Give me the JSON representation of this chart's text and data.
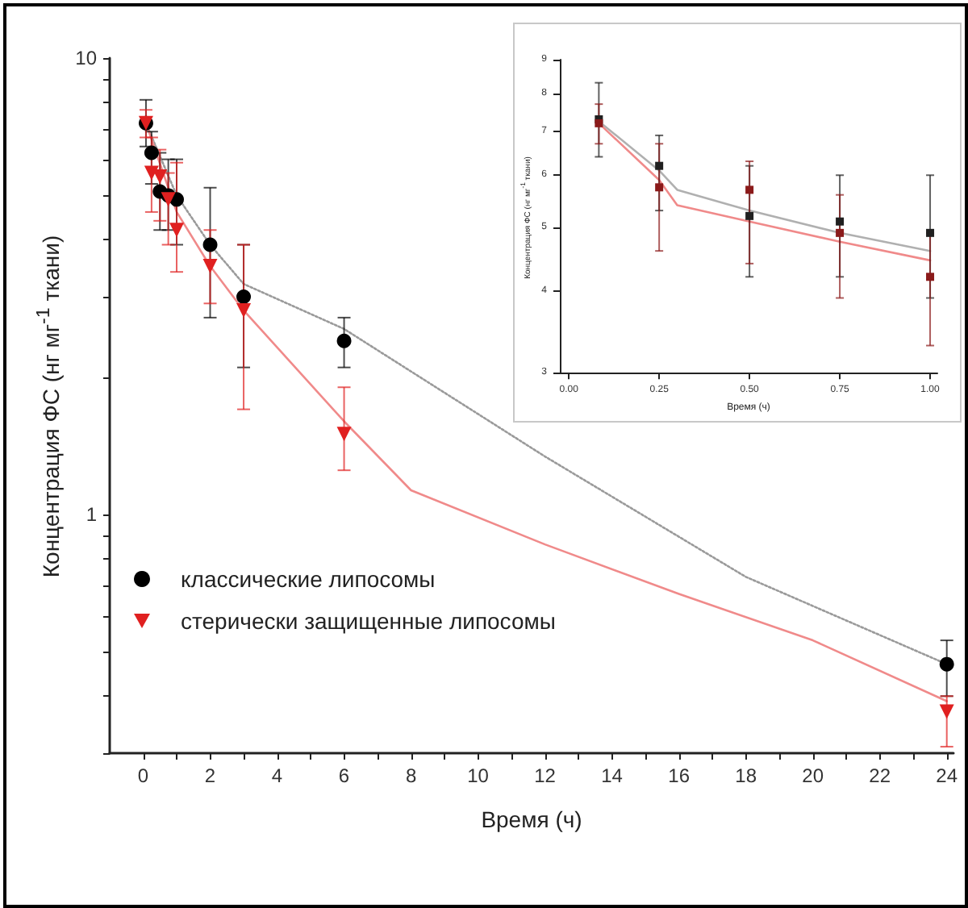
{
  "chart_data": [
    {
      "type": "scatter",
      "xlabel": "Время (ч)",
      "ylabel": "Концентрация ФС (нг мг$^{-1}$ ткани)",
      "log": "y",
      "grid": false,
      "legend": "bottom left",
      "xlim": [
        -1,
        24.2
      ],
      "xticks": [
        0,
        {
          "value": 1,
          "label": null
        },
        2,
        {
          "value": 3,
          "label": null
        },
        4,
        {
          "value": 5,
          "label": null
        },
        6,
        {
          "value": 7,
          "label": null
        },
        8,
        {
          "value": 9,
          "label": null
        },
        10,
        {
          "value": 11,
          "label": null
        },
        12,
        {
          "value": 13,
          "label": null
        },
        14,
        {
          "value": 15,
          "label": null
        },
        16,
        {
          "value": 17,
          "label": null
        },
        18,
        {
          "value": 19,
          "label": null
        },
        20,
        {
          "value": 21,
          "label": null
        },
        22,
        {
          "value": 23,
          "label": null
        },
        24
      ],
      "ylim": [
        0.3,
        10
      ],
      "yticks": [
        {
          "value": 0.3,
          "label": null
        },
        {
          "value": 0.4,
          "label": null
        },
        {
          "value": 0.5,
          "label": null
        },
        {
          "value": 0.6,
          "label": null
        },
        {
          "value": 0.7,
          "label": null
        },
        {
          "value": 0.8,
          "label": null
        },
        {
          "value": 0.9,
          "label": null
        },
        1,
        {
          "value": 2,
          "label": null
        },
        {
          "value": 3,
          "label": null
        },
        {
          "value": 4,
          "label": null
        },
        {
          "value": 5,
          "label": null
        },
        {
          "value": 6,
          "label": null
        },
        {
          "value": 7,
          "label": null
        },
        {
          "value": 8,
          "label": null
        },
        {
          "value": 9,
          "label": null
        },
        10
      ],
      "series": [
        {
          "type": "line",
          "line_style": "dotted",
          "marker": "none",
          "color": "#9a9a9a",
          "x": [
            0.083,
            1,
            2,
            3,
            6,
            12,
            18,
            24
          ],
          "values": [
            7.2,
            5.0,
            3.9,
            3.2,
            2.55,
            1.34,
            0.73,
            0.47
          ]
        },
        {
          "type": "line",
          "line_style": "solid",
          "marker": "none",
          "color": "#f08a8a",
          "x": [
            0.083,
            1,
            2,
            3,
            6,
            8,
            12,
            16,
            20,
            24
          ],
          "values": [
            7.2,
            4.6,
            3.5,
            2.8,
            1.6,
            1.13,
            0.86,
            0.67,
            0.53,
            0.39
          ]
        },
        {
          "name": "классические липосомы",
          "type": "scatter",
          "marker": "circle",
          "color": "#000000",
          "x": [
            0.083,
            0.25,
            0.5,
            0.75,
            1,
            2,
            3,
            6,
            24
          ],
          "values": [
            7.2,
            6.2,
            5.1,
            5.0,
            4.9,
            3.9,
            3.0,
            2.4,
            0.47
          ],
          "errors": [
            [
              6.4,
              8.1
            ],
            [
              5.3,
              6.9
            ],
            [
              4.2,
              6.2
            ],
            [
              4.2,
              6.0
            ],
            [
              3.9,
              6.0
            ],
            [
              2.7,
              5.2
            ],
            [
              2.1,
              3.9
            ],
            [
              2.1,
              2.7
            ],
            [
              0.4,
              0.53
            ]
          ]
        },
        {
          "name": "стерически защищенные липосомы",
          "type": "scatter",
          "marker": "triangle",
          "color": "#e02020",
          "x": [
            0.083,
            0.25,
            0.5,
            0.75,
            1,
            2,
            3,
            6,
            24
          ],
          "values": [
            7.2,
            5.6,
            5.5,
            4.9,
            4.2,
            3.5,
            2.8,
            1.5,
            0.37
          ],
          "errors": [
            [
              6.7,
              7.7
            ],
            [
              4.6,
              6.7
            ],
            [
              4.4,
              6.3
            ],
            [
              3.9,
              5.6
            ],
            [
              3.4,
              5.9
            ],
            [
              2.9,
              4.2
            ],
            [
              1.7,
              3.9
            ],
            [
              1.25,
              1.9
            ],
            [
              0.31,
              0.4
            ]
          ]
        }
      ]
    },
    {
      "type": "scatter",
      "xlabel": "Время (ч)",
      "ylabel": "Концентрация ФС (нг мг$^{-1}$ ткани)",
      "log": "y",
      "grid": false,
      "legend": false,
      "xlim": [
        -0.025,
        1.02
      ],
      "xticks": [
        {
          "value": 0,
          "label": "0.00"
        },
        {
          "value": 0.25,
          "label": "0.25"
        },
        {
          "value": 0.5,
          "label": "0.50"
        },
        {
          "value": 0.75,
          "label": "0.75"
        },
        {
          "value": 1,
          "label": "1.00"
        }
      ],
      "ylim": [
        3,
        9
      ],
      "yticks": [
        3,
        4,
        5,
        6,
        7,
        8,
        9
      ],
      "series": [
        {
          "type": "line",
          "line_style": "solid",
          "marker": "none",
          "color": "#b0b0b0",
          "x": [
            0.083,
            0.25,
            0.3,
            0.5,
            0.75,
            1
          ],
          "values": [
            7.25,
            6.1,
            5.7,
            5.3,
            4.9,
            4.6
          ]
        },
        {
          "type": "line",
          "line_style": "solid",
          "marker": "none",
          "color": "#f08a8a",
          "x": [
            0.083,
            0.25,
            0.3,
            0.5,
            0.75,
            1
          ],
          "values": [
            7.2,
            5.9,
            5.4,
            5.1,
            4.75,
            4.45
          ]
        },
        {
          "type": "scatter",
          "marker": "square",
          "color": "#202020",
          "x": [
            0.083,
            0.25,
            0.5,
            0.75,
            1
          ],
          "values": [
            7.3,
            6.2,
            5.2,
            5.1,
            4.9
          ],
          "errors": [
            [
              6.4,
              8.3
            ],
            [
              5.3,
              6.9
            ],
            [
              4.2,
              6.2
            ],
            [
              4.2,
              6.0
            ],
            [
              3.9,
              6.0
            ]
          ]
        },
        {
          "type": "scatter",
          "marker": "square",
          "color": "#8b1a1a",
          "x": [
            0.083,
            0.25,
            0.5,
            0.75,
            1
          ],
          "values": [
            7.2,
            5.75,
            5.7,
            4.9,
            4.2
          ],
          "errors": [
            [
              6.7,
              7.7
            ],
            [
              4.6,
              6.7
            ],
            [
              4.4,
              6.3
            ],
            [
              3.9,
              5.6
            ],
            [
              3.3,
              4.9
            ]
          ]
        }
      ]
    }
  ]
}
